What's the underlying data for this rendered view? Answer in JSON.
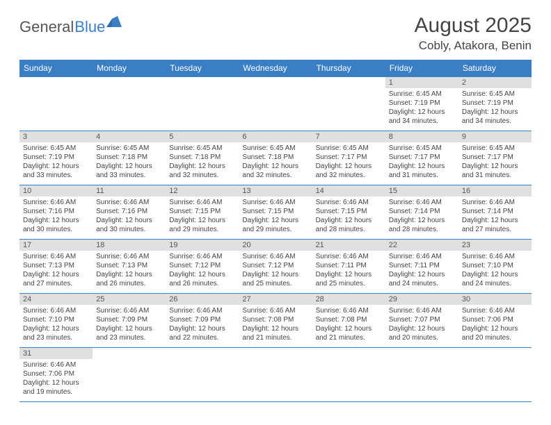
{
  "logo": {
    "part1": "General",
    "part2": "Blue"
  },
  "title": "August 2025",
  "location": "Cobly, Atakora, Benin",
  "colors": {
    "header_bg": "#3a7fc4",
    "header_text": "#ffffff",
    "daynum_bg": "#e0e0e0",
    "border": "#3a7fc4",
    "text": "#444444"
  },
  "weekdays": [
    "Sunday",
    "Monday",
    "Tuesday",
    "Wednesday",
    "Thursday",
    "Friday",
    "Saturday"
  ],
  "weeks": [
    [
      {
        "n": "",
        "sunrise": "",
        "sunset": "",
        "daylight": ""
      },
      {
        "n": "",
        "sunrise": "",
        "sunset": "",
        "daylight": ""
      },
      {
        "n": "",
        "sunrise": "",
        "sunset": "",
        "daylight": ""
      },
      {
        "n": "",
        "sunrise": "",
        "sunset": "",
        "daylight": ""
      },
      {
        "n": "",
        "sunrise": "",
        "sunset": "",
        "daylight": ""
      },
      {
        "n": "1",
        "sunrise": "Sunrise: 6:45 AM",
        "sunset": "Sunset: 7:19 PM",
        "daylight": "Daylight: 12 hours and 34 minutes."
      },
      {
        "n": "2",
        "sunrise": "Sunrise: 6:45 AM",
        "sunset": "Sunset: 7:19 PM",
        "daylight": "Daylight: 12 hours and 34 minutes."
      }
    ],
    [
      {
        "n": "3",
        "sunrise": "Sunrise: 6:45 AM",
        "sunset": "Sunset: 7:19 PM",
        "daylight": "Daylight: 12 hours and 33 minutes."
      },
      {
        "n": "4",
        "sunrise": "Sunrise: 6:45 AM",
        "sunset": "Sunset: 7:18 PM",
        "daylight": "Daylight: 12 hours and 33 minutes."
      },
      {
        "n": "5",
        "sunrise": "Sunrise: 6:45 AM",
        "sunset": "Sunset: 7:18 PM",
        "daylight": "Daylight: 12 hours and 32 minutes."
      },
      {
        "n": "6",
        "sunrise": "Sunrise: 6:45 AM",
        "sunset": "Sunset: 7:18 PM",
        "daylight": "Daylight: 12 hours and 32 minutes."
      },
      {
        "n": "7",
        "sunrise": "Sunrise: 6:45 AM",
        "sunset": "Sunset: 7:17 PM",
        "daylight": "Daylight: 12 hours and 32 minutes."
      },
      {
        "n": "8",
        "sunrise": "Sunrise: 6:45 AM",
        "sunset": "Sunset: 7:17 PM",
        "daylight": "Daylight: 12 hours and 31 minutes."
      },
      {
        "n": "9",
        "sunrise": "Sunrise: 6:45 AM",
        "sunset": "Sunset: 7:17 PM",
        "daylight": "Daylight: 12 hours and 31 minutes."
      }
    ],
    [
      {
        "n": "10",
        "sunrise": "Sunrise: 6:46 AM",
        "sunset": "Sunset: 7:16 PM",
        "daylight": "Daylight: 12 hours and 30 minutes."
      },
      {
        "n": "11",
        "sunrise": "Sunrise: 6:46 AM",
        "sunset": "Sunset: 7:16 PM",
        "daylight": "Daylight: 12 hours and 30 minutes."
      },
      {
        "n": "12",
        "sunrise": "Sunrise: 6:46 AM",
        "sunset": "Sunset: 7:15 PM",
        "daylight": "Daylight: 12 hours and 29 minutes."
      },
      {
        "n": "13",
        "sunrise": "Sunrise: 6:46 AM",
        "sunset": "Sunset: 7:15 PM",
        "daylight": "Daylight: 12 hours and 29 minutes."
      },
      {
        "n": "14",
        "sunrise": "Sunrise: 6:46 AM",
        "sunset": "Sunset: 7:15 PM",
        "daylight": "Daylight: 12 hours and 28 minutes."
      },
      {
        "n": "15",
        "sunrise": "Sunrise: 6:46 AM",
        "sunset": "Sunset: 7:14 PM",
        "daylight": "Daylight: 12 hours and 28 minutes."
      },
      {
        "n": "16",
        "sunrise": "Sunrise: 6:46 AM",
        "sunset": "Sunset: 7:14 PM",
        "daylight": "Daylight: 12 hours and 27 minutes."
      }
    ],
    [
      {
        "n": "17",
        "sunrise": "Sunrise: 6:46 AM",
        "sunset": "Sunset: 7:13 PM",
        "daylight": "Daylight: 12 hours and 27 minutes."
      },
      {
        "n": "18",
        "sunrise": "Sunrise: 6:46 AM",
        "sunset": "Sunset: 7:13 PM",
        "daylight": "Daylight: 12 hours and 26 minutes."
      },
      {
        "n": "19",
        "sunrise": "Sunrise: 6:46 AM",
        "sunset": "Sunset: 7:12 PM",
        "daylight": "Daylight: 12 hours and 26 minutes."
      },
      {
        "n": "20",
        "sunrise": "Sunrise: 6:46 AM",
        "sunset": "Sunset: 7:12 PM",
        "daylight": "Daylight: 12 hours and 25 minutes."
      },
      {
        "n": "21",
        "sunrise": "Sunrise: 6:46 AM",
        "sunset": "Sunset: 7:11 PM",
        "daylight": "Daylight: 12 hours and 25 minutes."
      },
      {
        "n": "22",
        "sunrise": "Sunrise: 6:46 AM",
        "sunset": "Sunset: 7:11 PM",
        "daylight": "Daylight: 12 hours and 24 minutes."
      },
      {
        "n": "23",
        "sunrise": "Sunrise: 6:46 AM",
        "sunset": "Sunset: 7:10 PM",
        "daylight": "Daylight: 12 hours and 24 minutes."
      }
    ],
    [
      {
        "n": "24",
        "sunrise": "Sunrise: 6:46 AM",
        "sunset": "Sunset: 7:10 PM",
        "daylight": "Daylight: 12 hours and 23 minutes."
      },
      {
        "n": "25",
        "sunrise": "Sunrise: 6:46 AM",
        "sunset": "Sunset: 7:09 PM",
        "daylight": "Daylight: 12 hours and 23 minutes."
      },
      {
        "n": "26",
        "sunrise": "Sunrise: 6:46 AM",
        "sunset": "Sunset: 7:09 PM",
        "daylight": "Daylight: 12 hours and 22 minutes."
      },
      {
        "n": "27",
        "sunrise": "Sunrise: 6:46 AM",
        "sunset": "Sunset: 7:08 PM",
        "daylight": "Daylight: 12 hours and 21 minutes."
      },
      {
        "n": "28",
        "sunrise": "Sunrise: 6:46 AM",
        "sunset": "Sunset: 7:08 PM",
        "daylight": "Daylight: 12 hours and 21 minutes."
      },
      {
        "n": "29",
        "sunrise": "Sunrise: 6:46 AM",
        "sunset": "Sunset: 7:07 PM",
        "daylight": "Daylight: 12 hours and 20 minutes."
      },
      {
        "n": "30",
        "sunrise": "Sunrise: 6:46 AM",
        "sunset": "Sunset: 7:06 PM",
        "daylight": "Daylight: 12 hours and 20 minutes."
      }
    ],
    [
      {
        "n": "31",
        "sunrise": "Sunrise: 6:46 AM",
        "sunset": "Sunset: 7:06 PM",
        "daylight": "Daylight: 12 hours and 19 minutes."
      },
      {
        "n": "",
        "sunrise": "",
        "sunset": "",
        "daylight": ""
      },
      {
        "n": "",
        "sunrise": "",
        "sunset": "",
        "daylight": ""
      },
      {
        "n": "",
        "sunrise": "",
        "sunset": "",
        "daylight": ""
      },
      {
        "n": "",
        "sunrise": "",
        "sunset": "",
        "daylight": ""
      },
      {
        "n": "",
        "sunrise": "",
        "sunset": "",
        "daylight": ""
      },
      {
        "n": "",
        "sunrise": "",
        "sunset": "",
        "daylight": ""
      }
    ]
  ]
}
